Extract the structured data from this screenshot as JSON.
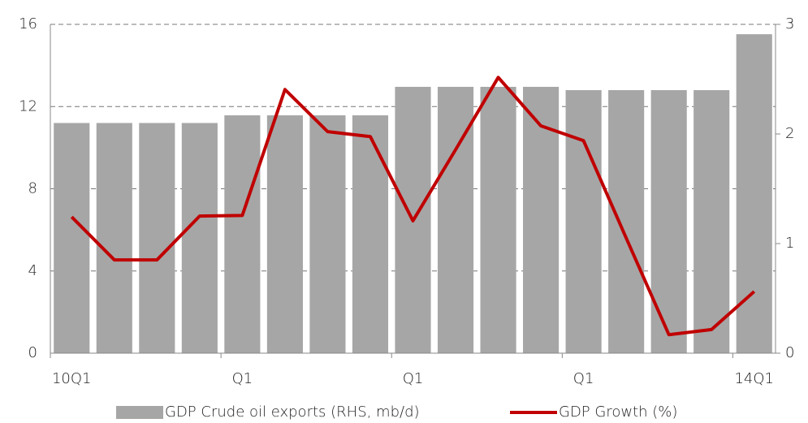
{
  "chart_data": {
    "type": "bar_line",
    "categories": [
      "10Q1",
      null,
      null,
      null,
      "Q1",
      null,
      null,
      null,
      "Q1",
      null,
      null,
      null,
      "Q1",
      null,
      null,
      null,
      "14Q1"
    ],
    "series": [
      {
        "name": "GDP Crude oil exports (RHS, mb/d)",
        "type": "bar",
        "axis": "y2",
        "color": "#a6a6a6",
        "values": [
          2.1,
          2.1,
          2.1,
          2.1,
          2.17,
          2.17,
          2.17,
          2.17,
          2.43,
          2.43,
          2.43,
          2.43,
          2.4,
          2.4,
          2.4,
          2.4,
          2.91
        ]
      },
      {
        "name": "GDP  Growth (%)",
        "type": "line",
        "axis": "y",
        "color": "#c00000",
        "values": [
          6.63,
          4.54,
          4.54,
          6.67,
          6.7,
          12.83,
          10.78,
          10.54,
          6.44,
          9.9,
          13.42,
          11.06,
          10.34,
          5.6,
          0.9,
          1.15,
          3.0
        ]
      }
    ],
    "ylim": [
      0,
      16
    ],
    "yticks": [
      0,
      4,
      8,
      12,
      16
    ],
    "y2lim": [
      0,
      3
    ],
    "y2ticks": [
      0,
      1,
      2,
      3
    ],
    "grid": true,
    "legend": "bottom"
  }
}
